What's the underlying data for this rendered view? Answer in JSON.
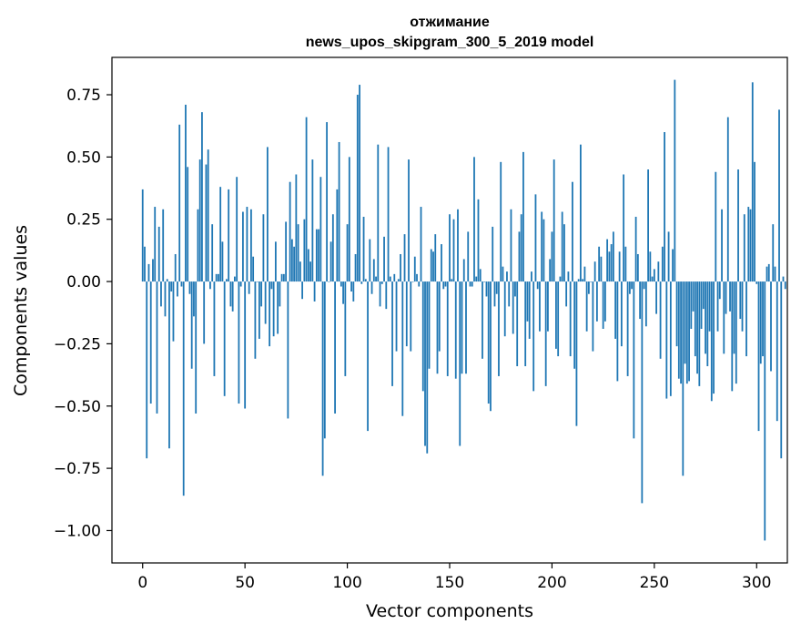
{
  "chart_data": {
    "type": "bar",
    "title": "отжимание",
    "subtitle": "news_upos_skipgram_300_5_2019 model",
    "xlabel": "Vector components",
    "ylabel": "Components values",
    "xlim": [
      -15,
      315
    ],
    "ylim": [
      -1.13,
      0.9
    ],
    "xticks": [
      0,
      50,
      100,
      150,
      200,
      250,
      300
    ],
    "yticks": [
      0.75,
      0.5,
      0.25,
      0.0,
      -0.25,
      -0.5,
      -0.75,
      -1.0
    ],
    "ytick_labels": [
      "0.75",
      "0.50",
      "0.25",
      "0.00",
      "−0.25",
      "−0.50",
      "−0.75",
      "−1.00"
    ],
    "grid": false,
    "bar_color": "#1f77b4",
    "values": [
      0.37,
      0.14,
      -0.71,
      0.07,
      -0.49,
      0.09,
      0.3,
      -0.53,
      0.22,
      -0.1,
      0.29,
      -0.14,
      0.01,
      -0.67,
      -0.04,
      -0.24,
      0.11,
      -0.06,
      0.63,
      -0.02,
      -0.86,
      0.71,
      0.46,
      -0.05,
      -0.35,
      -0.14,
      -0.53,
      0.29,
      0.49,
      0.68,
      -0.25,
      0.47,
      0.53,
      -0.03,
      0.23,
      -0.38,
      0.03,
      0.03,
      0.38,
      0.16,
      -0.46,
      0.01,
      0.37,
      -0.1,
      -0.12,
      0.02,
      0.42,
      -0.49,
      -0.02,
      0.28,
      -0.51,
      0.3,
      -0.05,
      0.29,
      0.1,
      -0.31,
      0.0,
      -0.23,
      -0.1,
      0.27,
      -0.17,
      0.54,
      -0.26,
      -0.03,
      -0.22,
      0.16,
      -0.21,
      -0.1,
      0.03,
      0.03,
      0.24,
      -0.55,
      0.4,
      0.17,
      0.14,
      0.43,
      0.23,
      0.08,
      -0.07,
      0.25,
      0.66,
      0.13,
      0.08,
      0.49,
      -0.08,
      0.21,
      0.21,
      0.42,
      -0.78,
      -0.63,
      0.64,
      0.0,
      0.16,
      0.27,
      -0.53,
      0.37,
      0.56,
      -0.02,
      -0.09,
      -0.38,
      0.23,
      0.5,
      -0.04,
      -0.08,
      0.11,
      0.75,
      0.79,
      -0.01,
      0.26,
      0.01,
      -0.6,
      0.17,
      -0.05,
      0.09,
      0.02,
      0.55,
      -0.1,
      -0.01,
      0.18,
      -0.11,
      0.54,
      0.02,
      -0.42,
      0.03,
      -0.28,
      0.01,
      0.11,
      -0.54,
      0.19,
      -0.26,
      0.49,
      -0.28,
      0.0,
      0.1,
      0.03,
      -0.02,
      0.3,
      -0.44,
      -0.66,
      -0.69,
      -0.35,
      0.13,
      0.12,
      0.19,
      -0.37,
      -0.28,
      0.15,
      -0.03,
      -0.02,
      -0.38,
      0.27,
      0.01,
      0.25,
      -0.39,
      0.29,
      -0.66,
      -0.37,
      0.09,
      -0.37,
      0.2,
      -0.02,
      -0.02,
      0.5,
      0.02,
      0.33,
      0.05,
      -0.31,
      0.0,
      -0.06,
      -0.49,
      -0.52,
      0.22,
      -0.1,
      -0.05,
      -0.38,
      0.48,
      0.06,
      -0.22,
      0.04,
      -0.1,
      0.29,
      -0.21,
      -0.06,
      -0.34,
      0.2,
      0.27,
      0.52,
      -0.34,
      -0.16,
      -0.23,
      0.04,
      -0.44,
      0.35,
      -0.03,
      -0.2,
      0.28,
      0.25,
      -0.42,
      -0.2,
      0.09,
      0.2,
      0.49,
      -0.27,
      -0.3,
      0.02,
      0.28,
      0.23,
      -0.1,
      0.04,
      -0.3,
      0.4,
      -0.35,
      -0.58,
      0.01,
      0.55,
      0.01,
      0.06,
      -0.2,
      -0.05,
      0.0,
      -0.28,
      0.08,
      -0.16,
      0.14,
      0.1,
      -0.19,
      -0.16,
      0.17,
      0.12,
      0.15,
      0.2,
      -0.23,
      -0.4,
      0.12,
      -0.26,
      0.43,
      0.14,
      -0.38,
      -0.05,
      -0.03,
      -0.63,
      0.26,
      0.11,
      -0.15,
      -0.89,
      -0.03,
      -0.18,
      0.45,
      0.12,
      0.02,
      0.05,
      -0.13,
      0.08,
      -0.31,
      0.14,
      0.6,
      -0.47,
      0.2,
      -0.46,
      0.13,
      0.81,
      -0.26,
      -0.39,
      -0.41,
      -0.78,
      -0.33,
      -0.41,
      -0.4,
      -0.19,
      -0.12,
      -0.3,
      -0.37,
      -0.42,
      -0.19,
      -0.11,
      -0.29,
      -0.34,
      -0.2,
      -0.48,
      -0.45,
      0.44,
      -0.2,
      -0.07,
      0.29,
      -0.29,
      -0.13,
      0.66,
      -0.12,
      -0.44,
      -0.29,
      -0.41,
      0.45,
      -0.15,
      -0.2,
      0.27,
      -0.3,
      0.3,
      0.29,
      0.8,
      0.48,
      -0.01,
      -0.6,
      -0.33,
      -0.3,
      -1.04,
      0.06,
      0.07,
      -0.36,
      0.23,
      0.06,
      -0.56,
      0.69,
      -0.71,
      0.02,
      -0.03
    ]
  }
}
